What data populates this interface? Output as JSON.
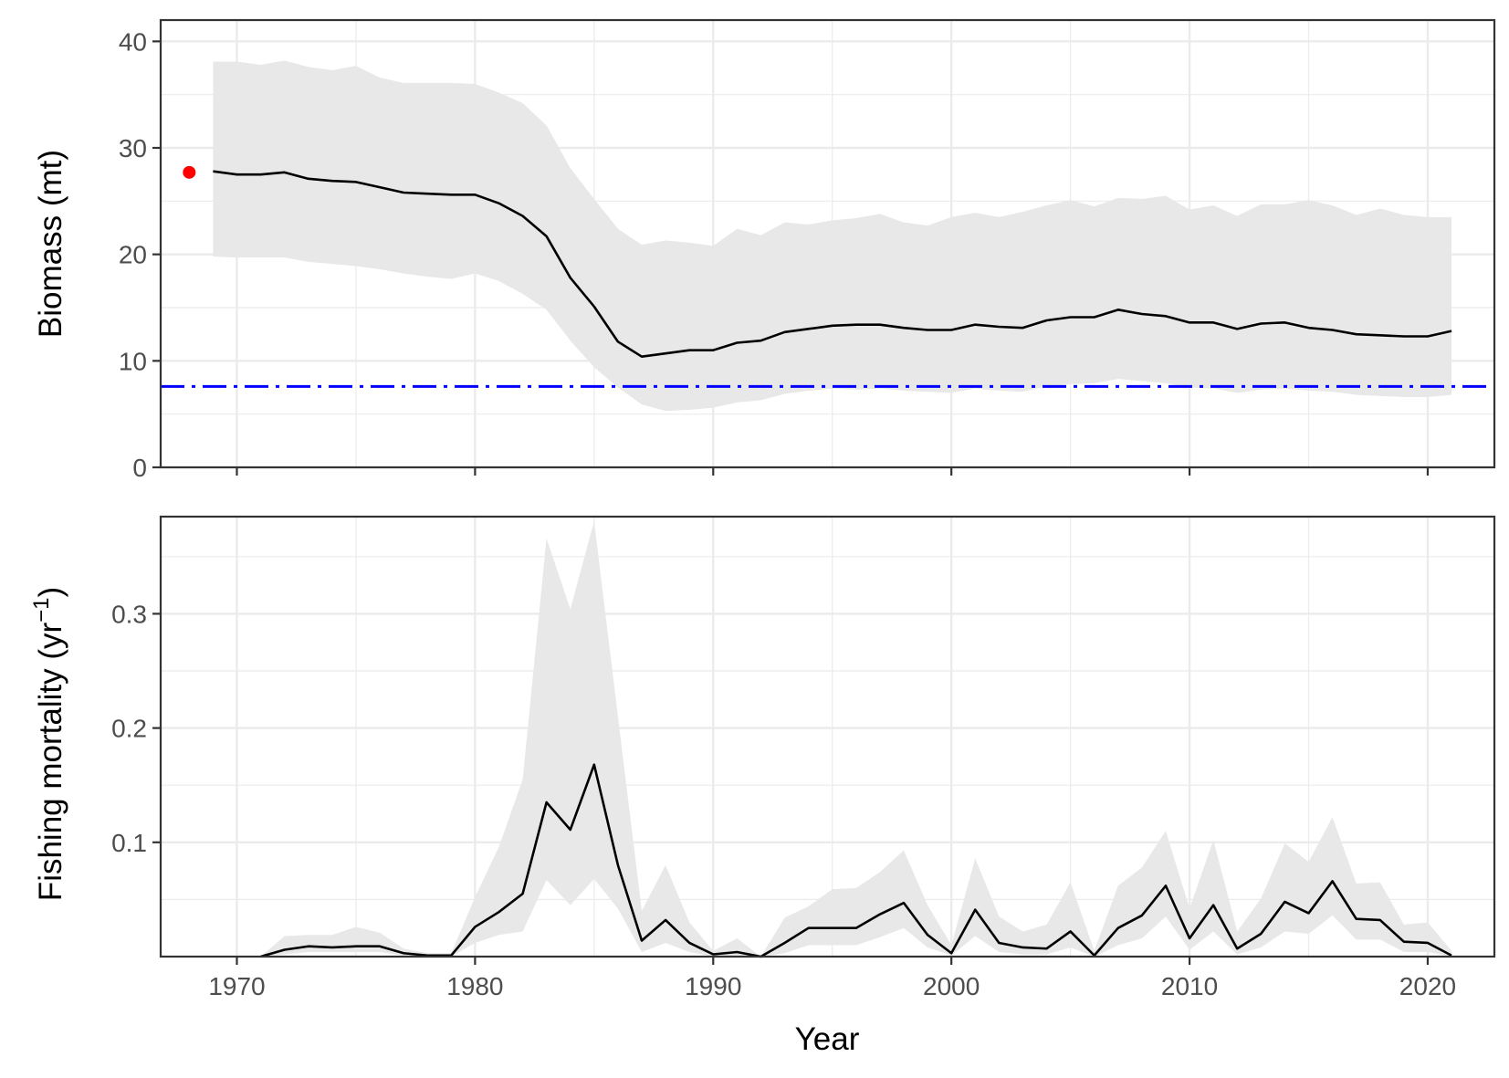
{
  "chart_data": [
    {
      "type": "line",
      "panel": "top",
      "ylabel": "Biomass (mt)",
      "xlabel": "",
      "xlim": [
        1966.8,
        2022.8
      ],
      "ylim": [
        0,
        42
      ],
      "x_ticks": [
        1970,
        1980,
        1990,
        2000,
        2010,
        2020
      ],
      "y_ticks": [
        0,
        10,
        20,
        30,
        40
      ],
      "grid": true,
      "band_color": "#e8e8e8",
      "line_color": "#000000",
      "x": [
        1969,
        1970,
        1971,
        1972,
        1973,
        1974,
        1975,
        1976,
        1977,
        1978,
        1979,
        1980,
        1981,
        1982,
        1983,
        1984,
        1985,
        1986,
        1987,
        1988,
        1989,
        1990,
        1991,
        1992,
        1993,
        1994,
        1995,
        1996,
        1997,
        1998,
        1999,
        2000,
        2001,
        2002,
        2003,
        2004,
        2005,
        2006,
        2007,
        2008,
        2009,
        2010,
        2011,
        2012,
        2013,
        2014,
        2015,
        2016,
        2017,
        2018,
        2019,
        2020,
        2021
      ],
      "series": [
        {
          "values": [
            27.8,
            27.5,
            27.5,
            27.7,
            27.1,
            26.9,
            26.8,
            26.3,
            25.8,
            25.7,
            25.6,
            25.6,
            24.8,
            23.6,
            21.7,
            17.8,
            15.1,
            11.8,
            10.4,
            10.7,
            11.0,
            11.0,
            11.7,
            11.9,
            12.7,
            13.0,
            13.3,
            13.4,
            13.4,
            13.1,
            12.9,
            12.9,
            13.4,
            13.2,
            13.1,
            13.8,
            14.1,
            14.1,
            14.8,
            14.4,
            14.2,
            13.6,
            13.6,
            13.0,
            13.5,
            13.6,
            13.1,
            12.9,
            12.5,
            12.4,
            12.3,
            12.3,
            12.8
          ],
          "lower": [
            19.8,
            19.7,
            19.7,
            19.7,
            19.3,
            19.1,
            18.9,
            18.6,
            18.2,
            17.9,
            17.7,
            18.2,
            17.5,
            16.3,
            14.8,
            11.9,
            9.4,
            7.5,
            5.9,
            5.3,
            5.4,
            5.6,
            6.1,
            6.3,
            6.9,
            7.2,
            7.4,
            7.3,
            7.4,
            7.2,
            7.1,
            7.0,
            7.4,
            7.2,
            7.1,
            7.6,
            7.8,
            7.9,
            8.3,
            8.1,
            7.9,
            7.5,
            7.4,
            7.0,
            7.3,
            7.4,
            7.2,
            7.1,
            6.8,
            6.7,
            6.6,
            6.6,
            6.8
          ],
          "upper": [
            38.1,
            38.1,
            37.8,
            38.2,
            37.6,
            37.3,
            37.7,
            36.6,
            36.1,
            36.1,
            36.1,
            36.0,
            35.2,
            34.2,
            32.1,
            28.1,
            25.2,
            22.4,
            20.9,
            21.3,
            21.1,
            20.8,
            22.4,
            21.8,
            23.0,
            22.8,
            23.2,
            23.4,
            23.8,
            23.0,
            22.7,
            23.5,
            23.9,
            23.5,
            24.0,
            24.6,
            25.1,
            24.5,
            25.3,
            25.2,
            25.5,
            24.2,
            24.6,
            23.6,
            24.7,
            24.7,
            25.1,
            24.6,
            23.7,
            24.3,
            23.7,
            23.5,
            23.5
          ]
        }
      ],
      "point": {
        "x": 1968,
        "y": 27.7,
        "color": "#ff0000"
      },
      "reference_line": {
        "y": 7.6,
        "color": "#0000ff",
        "style": "dash-dot"
      }
    },
    {
      "type": "line",
      "panel": "bottom",
      "ylabel": "Fishing mortality",
      "ylabel_unit": "yr",
      "ylabel_unit_exponent": "−1",
      "xlabel": "Year",
      "xlim": [
        1966.8,
        2022.8
      ],
      "ylim": [
        0,
        0.385
      ],
      "x_ticks": [
        1970,
        1980,
        1990,
        2000,
        2010,
        2020
      ],
      "y_ticks": [
        0.1,
        0.2,
        0.3
      ],
      "grid": true,
      "band_color": "#e8e8e8",
      "line_color": "#000000",
      "x": [
        1971,
        1972,
        1973,
        1974,
        1975,
        1976,
        1977,
        1978,
        1979,
        1980,
        1981,
        1982,
        1983,
        1984,
        1985,
        1986,
        1987,
        1988,
        1989,
        1990,
        1991,
        1992,
        1993,
        1994,
        1995,
        1996,
        1997,
        1998,
        1999,
        2000,
        2001,
        2002,
        2003,
        2004,
        2005,
        2006,
        2007,
        2008,
        2009,
        2010,
        2011,
        2012,
        2013,
        2014,
        2015,
        2016,
        2017,
        2018,
        2019,
        2020,
        2021
      ],
      "series": [
        {
          "values": [
            0.0,
            0.006,
            0.009,
            0.008,
            0.009,
            0.009,
            0.003,
            0.001,
            0.001,
            0.026,
            0.039,
            0.055,
            0.135,
            0.111,
            0.168,
            0.08,
            0.014,
            0.032,
            0.012,
            0.002,
            0.004,
            0.0,
            0.012,
            0.025,
            0.025,
            0.025,
            0.037,
            0.047,
            0.019,
            0.003,
            0.041,
            0.012,
            0.008,
            0.007,
            0.022,
            0.001,
            0.025,
            0.036,
            0.062,
            0.016,
            0.045,
            0.007,
            0.02,
            0.048,
            0.038,
            0.066,
            0.033,
            0.032,
            0.013,
            0.012,
            0.001
          ],
          "lower": [
            0.0,
            0.002,
            0.004,
            0.004,
            0.004,
            0.004,
            0.001,
            0.0,
            0.0,
            0.012,
            0.019,
            0.022,
            0.067,
            0.045,
            0.068,
            0.042,
            0.004,
            0.012,
            0.004,
            0.0,
            0.001,
            0.0,
            0.003,
            0.01,
            0.01,
            0.01,
            0.017,
            0.025,
            0.008,
            0.001,
            0.018,
            0.004,
            0.002,
            0.002,
            0.008,
            0.0,
            0.01,
            0.016,
            0.035,
            0.006,
            0.022,
            0.002,
            0.008,
            0.022,
            0.02,
            0.036,
            0.015,
            0.015,
            0.004,
            0.004,
            0.0
          ],
          "upper": [
            0.0,
            0.018,
            0.019,
            0.019,
            0.026,
            0.021,
            0.007,
            0.003,
            0.003,
            0.052,
            0.096,
            0.155,
            0.366,
            0.304,
            0.381,
            0.21,
            0.04,
            0.08,
            0.03,
            0.005,
            0.016,
            0.0,
            0.034,
            0.044,
            0.059,
            0.06,
            0.074,
            0.093,
            0.045,
            0.01,
            0.086,
            0.035,
            0.022,
            0.028,
            0.065,
            0.005,
            0.062,
            0.078,
            0.11,
            0.042,
            0.102,
            0.022,
            0.051,
            0.099,
            0.083,
            0.122,
            0.064,
            0.065,
            0.028,
            0.03,
            0.005
          ]
        }
      ]
    }
  ]
}
